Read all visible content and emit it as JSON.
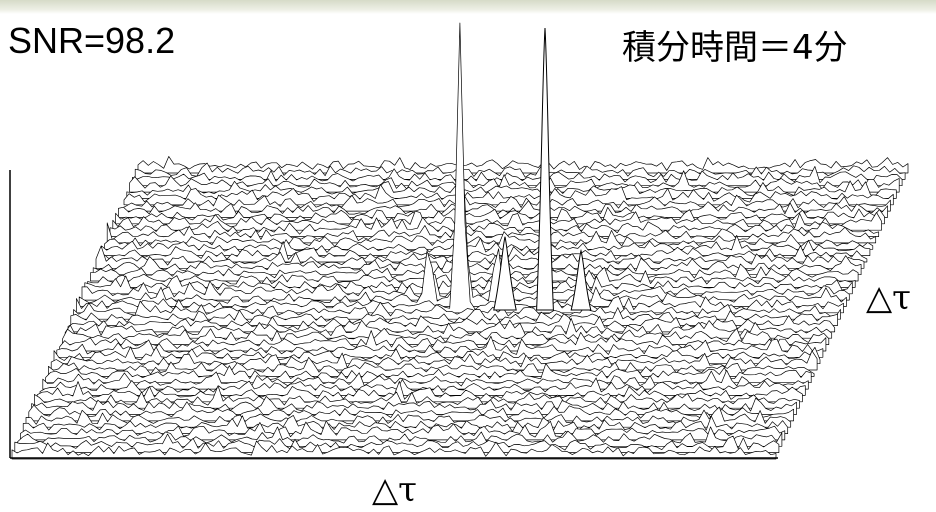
{
  "slide": {
    "snr_text": "SNR=98.2",
    "integration_text": "積分時間＝4分"
  },
  "chart_data": {
    "type": "surface",
    "xlabel": "△τ",
    "ylabel": "△τ",
    "background": "random noise floor",
    "peaks": [
      {
        "name": "main",
        "relative_height": 1.0
      },
      {
        "name": "left side",
        "relative_height": 0.26
      },
      {
        "name": "right side",
        "relative_height": 0.21
      }
    ],
    "grid": false,
    "line_color": "#000000",
    "fill_color": "#ffffff"
  }
}
